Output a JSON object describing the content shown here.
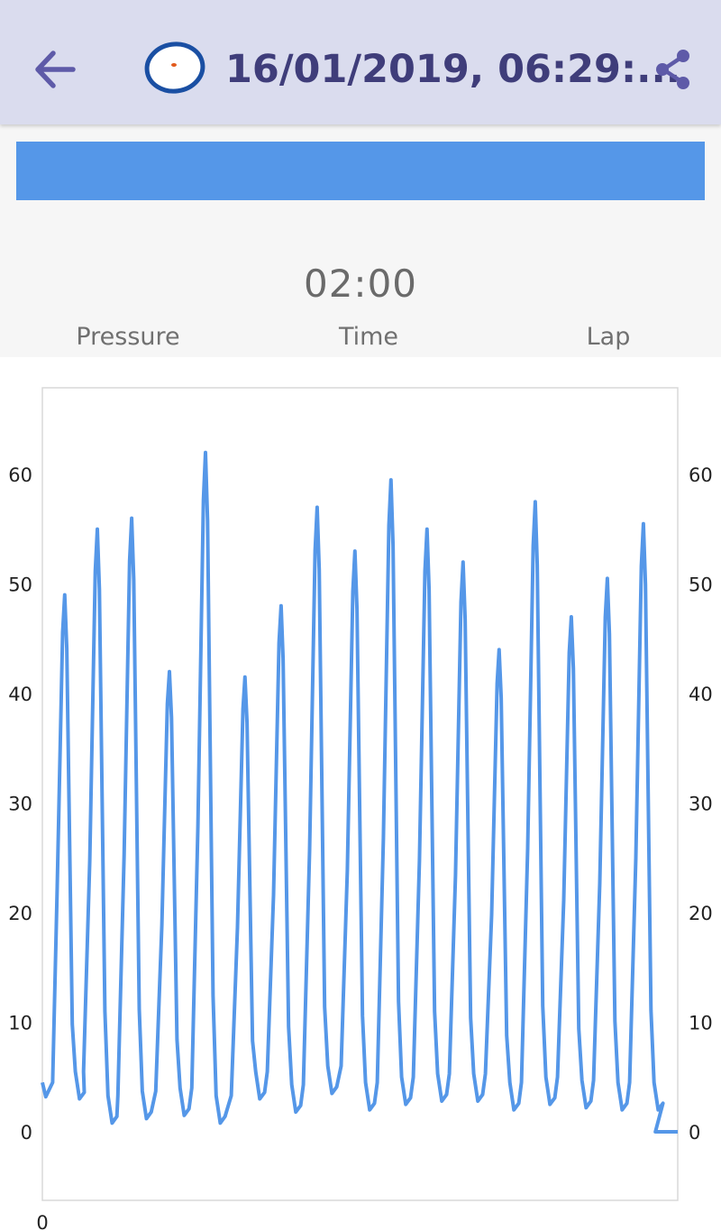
{
  "appbar": {
    "title": "16/01/2019, 06:29:...",
    "back_icon": "arrow-left-icon",
    "share_icon": "share-icon",
    "logo_icon": "oval-logo-icon",
    "background": "#dadcee",
    "title_color": "#3f3d7a"
  },
  "pressure_bar": {
    "fill_fraction": 1.0,
    "color": "#5597e8"
  },
  "stats": {
    "time_value": "02:00",
    "labels": {
      "pressure": "Pressure",
      "time": "Time",
      "lap": "Lap"
    }
  },
  "chart_data": {
    "type": "line",
    "series_color": "#5597e8",
    "ylim": [
      -6,
      68
    ],
    "xlim": [
      0,
      185
    ],
    "yticks_left": [
      "0",
      "10",
      "20",
      "30",
      "40",
      "50",
      "60"
    ],
    "yticks_right": [
      "0",
      "10",
      "20",
      "30",
      "40",
      "50",
      "60"
    ],
    "xticks": [
      "0"
    ],
    "grid": false,
    "legend": "none",
    "peaks": [
      49,
      55,
      56,
      42,
      62,
      41.5,
      48,
      57,
      53,
      59.5,
      55,
      52,
      44,
      57.5,
      47,
      50.5,
      55.5
    ],
    "troughs": [
      3,
      0.8,
      1.2,
      1.5,
      0.8,
      3,
      1.8,
      3.5,
      2,
      2.5,
      2.8,
      2.8,
      2,
      2.5,
      2.2,
      2,
      2
    ],
    "start_value": 4.5,
    "end_value": 0
  }
}
